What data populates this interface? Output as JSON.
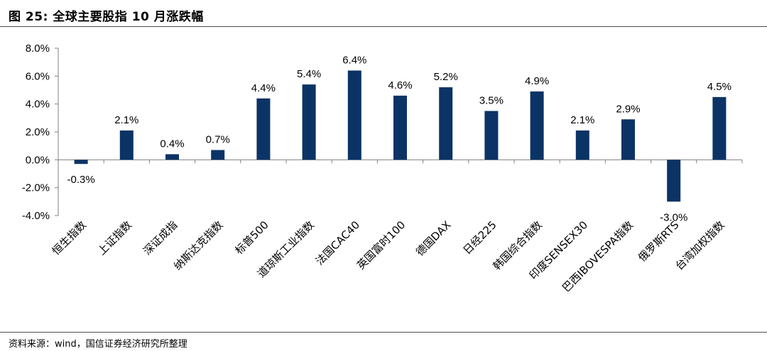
{
  "figure": {
    "title": "图 25:  全球主要股指 10 月涨跌幅",
    "source": "资料来源：wind，国信证券经济研究所整理"
  },
  "colors": {
    "bar": "#0b3366",
    "axis": "#808080",
    "text": "#000000"
  },
  "chart_data": {
    "type": "bar",
    "categories": [
      "恒生指数",
      "上证指数",
      "深证成指",
      "纳斯达克指数",
      "标普500",
      "道琼斯工业指数",
      "法国CAC40",
      "英国富时100",
      "德国DAX",
      "日经225",
      "韩国综合指数",
      "印度SENSEX30",
      "巴西IBOVESPA指数",
      "俄罗斯RTS",
      "台湾加权指数"
    ],
    "values": [
      -0.3,
      2.1,
      0.4,
      0.7,
      4.4,
      5.4,
      6.4,
      4.6,
      5.2,
      3.5,
      4.9,
      2.1,
      2.9,
      -3.0,
      4.5
    ],
    "data_labels": [
      "-0.3%",
      "2.1%",
      "0.4%",
      "0.7%",
      "4.4%",
      "5.4%",
      "6.4%",
      "4.6%",
      "5.2%",
      "3.5%",
      "4.9%",
      "2.1%",
      "2.9%",
      "-3.0%",
      "4.5%"
    ],
    "y_ticks": [
      8.0,
      6.0,
      4.0,
      2.0,
      0.0,
      -2.0,
      -4.0
    ],
    "y_tick_labels": [
      "8.0%",
      "6.0%",
      "4.0%",
      "2.0%",
      "0.0%",
      "-2.0%",
      "-4.0%"
    ],
    "ylim": [
      -4.0,
      8.0
    ],
    "grid": false,
    "legend": "none"
  }
}
